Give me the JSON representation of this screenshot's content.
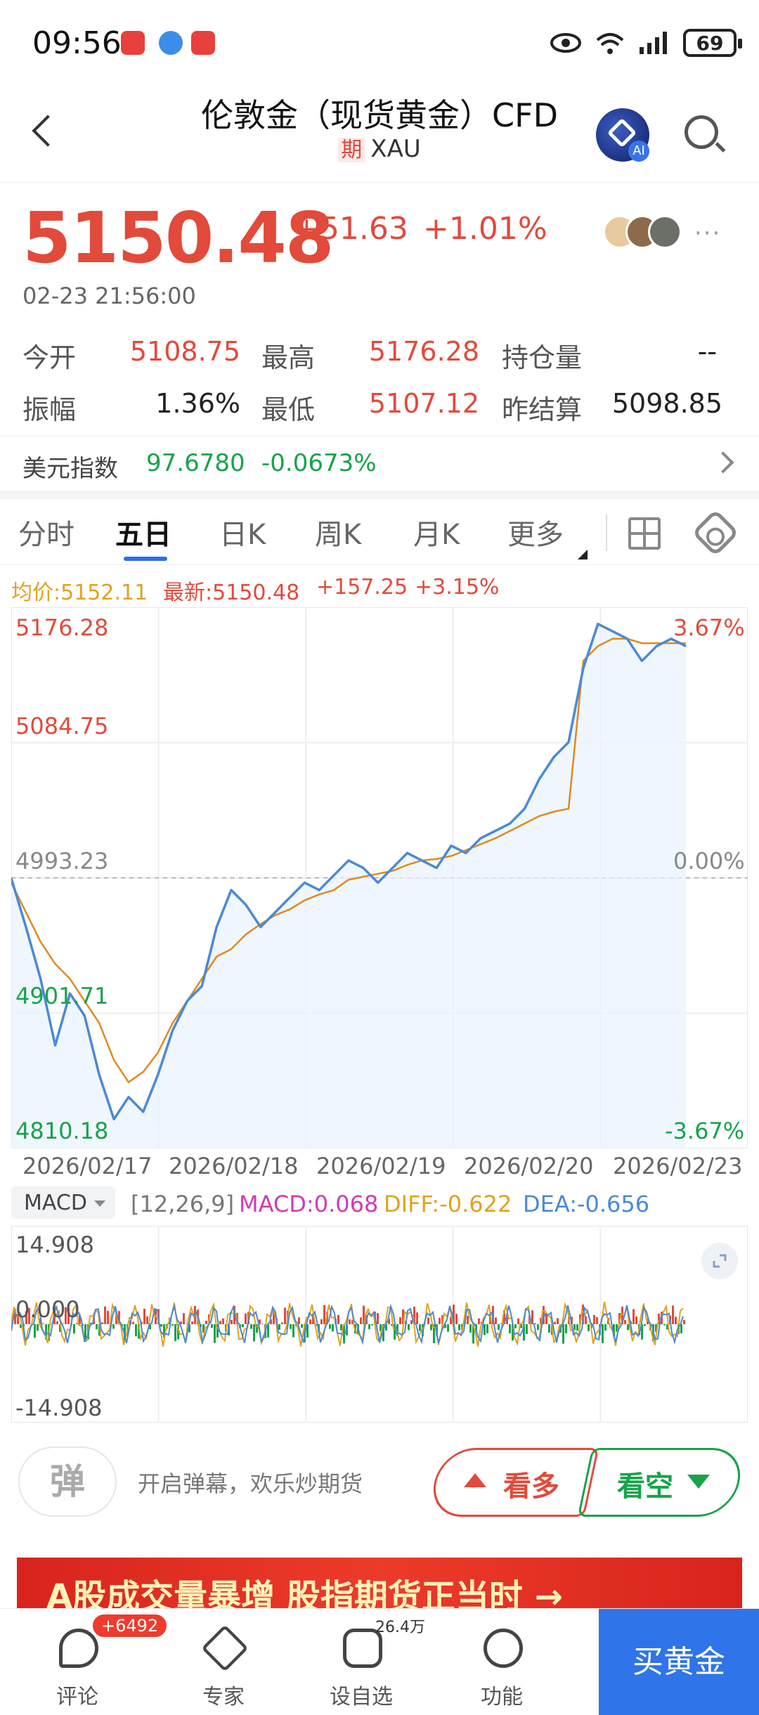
{
  "status_bar": {
    "time": "09:56",
    "battery": "69"
  },
  "header": {
    "title": "伦敦金（现货黄金）CFD",
    "tag": "期",
    "symbol": "XAU",
    "ai_label": "AI"
  },
  "quote": {
    "price": "5150.48",
    "change": "+51.63",
    "change_pct": "+1.01%",
    "timestamp": "02-23 21:56:00",
    "stats": [
      {
        "label": "今开",
        "value": "5108.75"
      },
      {
        "label": "最高",
        "value": "5176.28"
      },
      {
        "label": "持仓量",
        "value": "--"
      },
      {
        "label": "振幅",
        "value": "1.36%"
      },
      {
        "label": "最低",
        "value": "5107.12"
      },
      {
        "label": "昨结算",
        "value": "5098.85"
      }
    ]
  },
  "usd_index": {
    "label": "美元指数",
    "value": "97.6780",
    "change": "-0.0673%"
  },
  "tabs": [
    "分时",
    "五日",
    "日K",
    "周K",
    "月K",
    "更多"
  ],
  "active_tab": "五日",
  "chart_legend": {
    "avg": "均价:5152.11",
    "latest": "最新:5150.48",
    "change": "+157.25",
    "change_pct": "+3.15%"
  },
  "chart_data": {
    "type": "line",
    "y_labels": [
      "5176.28",
      "5084.75",
      "4993.23",
      "4901.71",
      "4810.18"
    ],
    "right_labels": [
      "3.67%",
      "0.00%",
      "-3.67%"
    ],
    "ylim": [
      4810.18,
      5176.28
    ],
    "baseline": 4993.23,
    "x_labels": [
      "2026/02/17",
      "2026/02/18",
      "2026/02/19",
      "2026/02/20",
      "2026/02/23"
    ],
    "series": [
      {
        "values": [
          4993,
          4960,
          4925,
          4880,
          4915,
          4900,
          4860,
          4830,
          4845,
          4835,
          4860,
          4890,
          4910,
          4920,
          4960,
          4985,
          4975,
          4960,
          4970,
          4980,
          4990,
          4985,
          4995,
          5005,
          5000,
          4990,
          5000,
          5010,
          5005,
          5000,
          5015,
          5010,
          5020,
          5025,
          5030,
          5040,
          5060,
          5075,
          5085,
          5135,
          5165,
          5160,
          5155,
          5140,
          5150,
          5155,
          5150
        ]
      },
      {
        "values": [
          4990,
          4970,
          4950,
          4935,
          4925,
          4910,
          4895,
          4870,
          4855,
          4862,
          4875,
          4895,
          4910,
          4925,
          4940,
          4945,
          4955,
          4962,
          4968,
          4972,
          4978,
          4982,
          4985,
          4992,
          4994,
          4996,
          4998,
          5002,
          5005,
          5006,
          5008,
          5012,
          5016,
          5020,
          5025,
          5030,
          5035,
          5038,
          5040,
          5140,
          5150,
          5155,
          5155,
          5152,
          5152,
          5152,
          5152
        ]
      }
    ]
  },
  "macd": {
    "selector": "MACD",
    "params": "[12,26,9]",
    "macd": "MACD:0.068",
    "diff": "DIFF:-0.622",
    "dea": "DEA:-0.656",
    "y_top": "14.908",
    "y_mid": "0.000",
    "y_bottom": "-14.908"
  },
  "bullet": {
    "icon_text": "弹",
    "text": "开启弹幕，欢乐炒期货"
  },
  "sentiment": {
    "bull": "看多",
    "bear": "看空"
  },
  "banner": {
    "text": "A股成交量暴增 股指期货正当时 →"
  },
  "nav": {
    "items": [
      {
        "label": "评论",
        "badge": "+6492"
      },
      {
        "label": "专家"
      },
      {
        "label": "设自选",
        "sup": "26.4万"
      },
      {
        "label": "功能"
      }
    ],
    "buy": "买黄金"
  },
  "colors": {
    "up": "#e24a3b",
    "down": "#17a34a",
    "line": "#4a8ad6",
    "avg": "#e08a1e",
    "accent": "#2f74e8"
  }
}
